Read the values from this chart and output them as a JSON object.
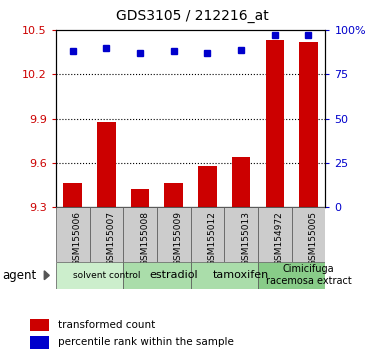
{
  "title": "GDS3105 / 212216_at",
  "samples": [
    "GSM155006",
    "GSM155007",
    "GSM155008",
    "GSM155009",
    "GSM155012",
    "GSM155013",
    "GSM154972",
    "GSM155005"
  ],
  "bar_values": [
    9.46,
    9.88,
    9.42,
    9.46,
    9.58,
    9.64,
    10.43,
    10.42
  ],
  "dot_values": [
    88,
    90,
    87,
    88,
    87,
    89,
    97,
    97
  ],
  "ylim_left": [
    9.3,
    10.5
  ],
  "ylim_right": [
    0,
    100
  ],
  "yticks_left": [
    9.3,
    9.6,
    9.9,
    10.2,
    10.5
  ],
  "yticks_right": [
    0,
    25,
    50,
    75,
    100
  ],
  "grid_values": [
    9.6,
    9.9,
    10.2
  ],
  "bar_color": "#cc0000",
  "dot_color": "#0000cc",
  "agent_groups": [
    {
      "label": "solvent control",
      "start": 0,
      "end": 2,
      "color": "#cceecc",
      "fontsize": 6.5
    },
    {
      "label": "estradiol",
      "start": 2,
      "end": 4,
      "color": "#aaddaa",
      "fontsize": 8
    },
    {
      "label": "tamoxifen",
      "start": 4,
      "end": 6,
      "color": "#aaddaa",
      "fontsize": 8
    },
    {
      "label": "Cimicifuga\nracemosa extract",
      "start": 6,
      "end": 8,
      "color": "#88cc88",
      "fontsize": 7
    }
  ],
  "legend_bar_label": "transformed count",
  "legend_dot_label": "percentile rank within the sample",
  "agent_label": "agent",
  "background_color": "#ffffff",
  "plot_bg_color": "#ffffff",
  "tick_label_color_left": "#cc0000",
  "tick_label_color_right": "#0000cc",
  "sample_box_color": "#cccccc",
  "bar_width": 0.55
}
